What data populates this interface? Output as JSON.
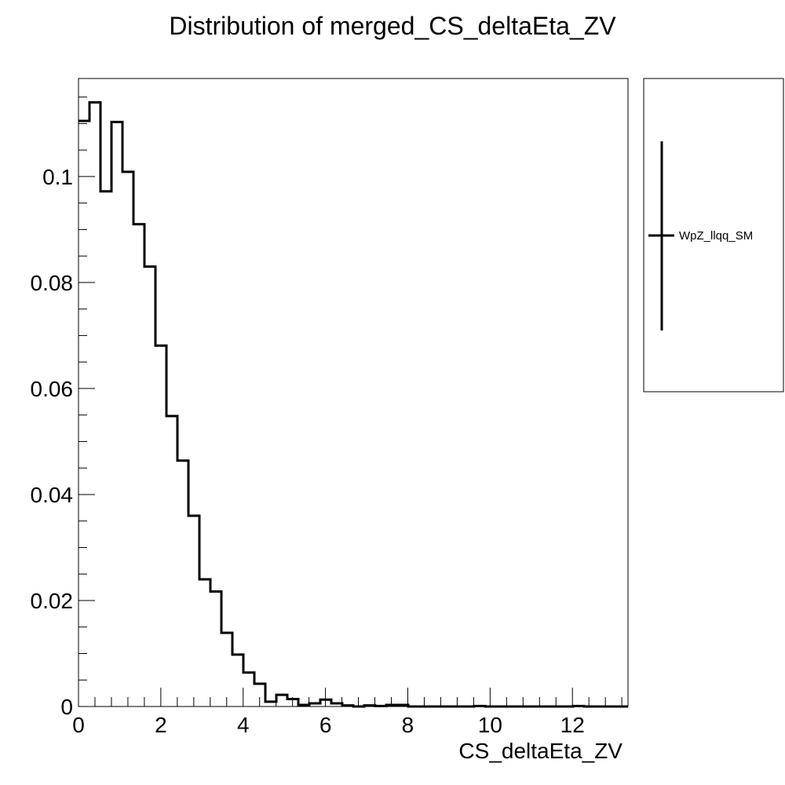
{
  "chart_data": {
    "type": "bar",
    "title": "Distribution of merged_CS_deltaEta_ZV",
    "xlabel": "CS_deltaEta_ZV",
    "ylabel": "",
    "xlim": [
      0,
      13.35
    ],
    "ylim": [
      0,
      0.1185
    ],
    "x_ticks": [
      0,
      2,
      4,
      6,
      8,
      10,
      12
    ],
    "x_tick_labels": [
      "0",
      "2",
      "4",
      "6",
      "8",
      "10",
      "12"
    ],
    "y_ticks": [
      0,
      0.02,
      0.04,
      0.06,
      0.08,
      0.1
    ],
    "y_tick_labels": [
      "0",
      "0.02",
      "0.04",
      "0.06",
      "0.08",
      "0.1"
    ],
    "bin_width": 0.267,
    "series": [
      {
        "name": "WpZ_llqq_SM",
        "color": "#000000",
        "values": [
          0.1105,
          0.114,
          0.0972,
          0.1103,
          0.1009,
          0.091,
          0.083,
          0.0681,
          0.0548,
          0.0464,
          0.036,
          0.024,
          0.0217,
          0.0139,
          0.0098,
          0.0064,
          0.0043,
          0.0009,
          0.0022,
          0.0014,
          0.0003,
          0.0006,
          0.0013,
          0.0006,
          0.0002,
          0.0,
          0.0002,
          0.0001,
          0.0003,
          0.0003,
          0.0,
          0.0,
          0.0,
          0.0,
          0.0,
          0.0,
          0.0001,
          0.0,
          0.0,
          0.0,
          0.0,
          0.0,
          0.0,
          0.0,
          0.0,
          0.0001,
          0.0,
          0.0,
          0.0,
          0.0
        ]
      }
    ],
    "legend": {
      "placement": "right",
      "entries": [
        "WpZ_llqq_SM"
      ]
    },
    "grid": false
  }
}
